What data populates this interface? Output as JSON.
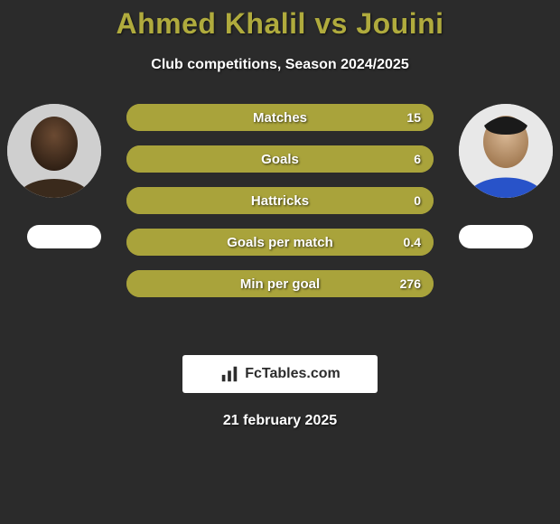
{
  "title": "Ahmed Khalil vs Jouini",
  "title_color": "#b0ab3d",
  "subtitle": "Club competitions, Season 2024/2025",
  "background_color": "#2b2b2b",
  "text_color": "#ffffff",
  "player_left": {
    "name": "Ahmed Khalil"
  },
  "player_right": {
    "name": "Jouini"
  },
  "bars": [
    {
      "label": "Matches",
      "left_value": null,
      "right_value": "15",
      "left_color": "#a9a33b",
      "right_color": "#a9a33b",
      "right_fill_pct": 100
    },
    {
      "label": "Goals",
      "left_value": null,
      "right_value": "6",
      "left_color": "#a9a33b",
      "right_color": "#a9a33b",
      "right_fill_pct": 100
    },
    {
      "label": "Hattricks",
      "left_value": null,
      "right_value": "0",
      "left_color": "#a9a33b",
      "right_color": "#a9a33b",
      "right_fill_pct": 100
    },
    {
      "label": "Goals per match",
      "left_value": null,
      "right_value": "0.4",
      "left_color": "#a9a33b",
      "right_color": "#a9a33b",
      "right_fill_pct": 100
    },
    {
      "label": "Min per goal",
      "left_value": null,
      "right_value": "276",
      "left_color": "#a9a33b",
      "right_color": "#a9a33b",
      "right_fill_pct": 100
    }
  ],
  "bar_style": {
    "height": 30,
    "radius": 15,
    "gap": 16,
    "label_fontsize": 15,
    "value_fontsize": 14
  },
  "branding": {
    "text": "FcTables.com"
  },
  "date": "21 february 2025",
  "badge_color": "#ffffff"
}
